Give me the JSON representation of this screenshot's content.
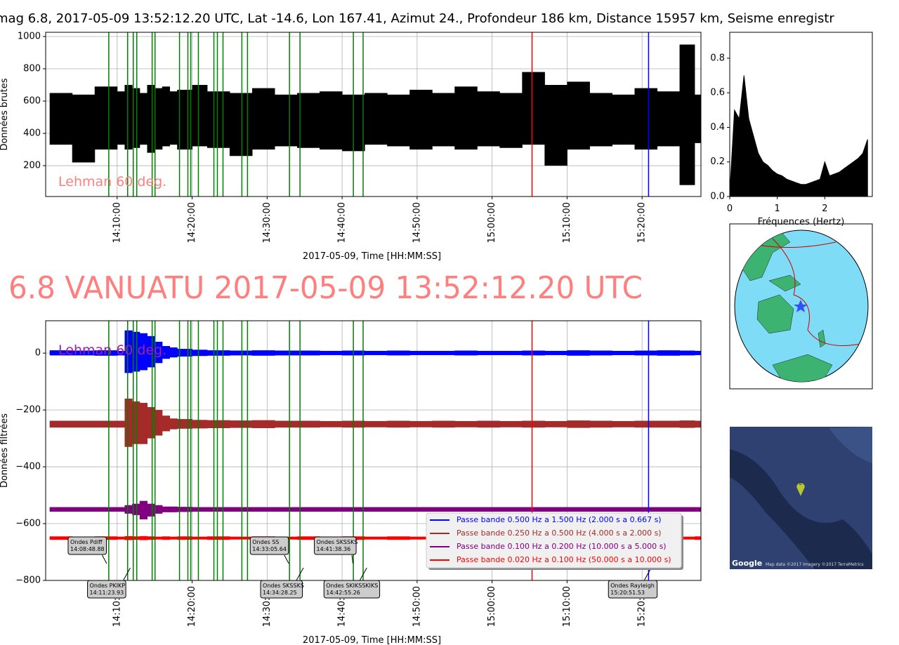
{
  "chart_data": [
    {
      "type": "band",
      "title": "mag 6.8, 2017-05-09 13:52:12.20 UTC, Lat -14.6, Lon 167.41, Azimut 24., Profondeur 186 km, Distance 15957 km, Seisme enregistr",
      "x_label": "2017-05-09, Time [HH:MM:SS]",
      "y_label": "Données brutes",
      "annotation": {
        "text": "Lehman 60 deg.",
        "color": "#ff7f7f"
      },
      "xlim": [
        "14:00:28",
        "15:27:51"
      ],
      "xticks": [
        "14:10:00",
        "14:20:00",
        "14:30:00",
        "14:40:00",
        "14:50:00",
        "15:00:00",
        "15:10:00",
        "15:20:00"
      ],
      "ylim": [
        9,
        1026
      ],
      "yticks": [
        200,
        400,
        600,
        800,
        1000
      ],
      "grid": true,
      "phase_lines": {
        "color": "#008000",
        "x": [
          "14:08:53",
          "14:11:24",
          "14:12:09",
          "14:12:37",
          "14:14:40",
          "14:15:03",
          "14:18:19",
          "14:19:26",
          "14:19:49",
          "14:20:50",
          "14:22:54",
          "14:23:22",
          "14:24:07",
          "14:26:38",
          "14:27:23",
          "14:32:59",
          "14:34:23",
          "14:41:30",
          "14:42:48"
        ]
      },
      "markers": [
        {
          "color": "#ff0000",
          "x": "15:05:20"
        },
        {
          "color": "#0000ff",
          "x": "15:20:52"
        }
      ],
      "x": [
        "14:01:00",
        "14:04:00",
        "14:07:00",
        "14:10:00",
        "14:11:00",
        "14:12:00",
        "14:13:00",
        "14:14:00",
        "14:15:00",
        "14:16:00",
        "14:17:00",
        "14:18:00",
        "14:20:00",
        "14:22:00",
        "14:25:00",
        "14:28:00",
        "14:31:00",
        "14:34:00",
        "14:37:00",
        "14:40:00",
        "14:43:00",
        "14:46:00",
        "14:49:00",
        "14:52:00",
        "14:55:00",
        "14:58:00",
        "15:01:00",
        "15:04:00",
        "15:07:00",
        "15:10:00",
        "15:13:00",
        "15:16:00",
        "15:19:00",
        "15:22:00",
        "15:25:00",
        "15:27:00"
      ],
      "series": [
        {
          "color": "#000000",
          "upper": [
            650,
            640,
            690,
            660,
            700,
            680,
            650,
            700,
            680,
            690,
            660,
            670,
            700,
            660,
            650,
            680,
            640,
            650,
            660,
            640,
            650,
            640,
            670,
            650,
            690,
            660,
            650,
            780,
            700,
            720,
            650,
            640,
            680,
            660,
            950,
            640
          ],
          "lower": [
            330,
            220,
            300,
            330,
            300,
            310,
            330,
            280,
            300,
            320,
            330,
            300,
            320,
            310,
            260,
            300,
            320,
            310,
            300,
            290,
            330,
            320,
            300,
            320,
            300,
            320,
            310,
            330,
            200,
            300,
            320,
            330,
            300,
            320,
            80,
            340
          ]
        }
      ]
    },
    {
      "type": "area",
      "x_label": "Fréquences (Hertz)",
      "xlim": [
        0,
        3.0
      ],
      "xticks": [
        0,
        1,
        2
      ],
      "ylim": [
        0,
        0.95
      ],
      "yticks": [
        {
          "value": 0,
          "label": "0.0"
        },
        0.2,
        0.4,
        0.6,
        0.8
      ],
      "x": [
        0,
        0.1,
        0.2,
        0.3,
        0.4,
        0.5,
        0.6,
        0.7,
        0.8,
        0.9,
        1.0,
        1.1,
        1.2,
        1.3,
        1.4,
        1.5,
        1.6,
        1.7,
        1.8,
        1.9,
        2.0,
        2.1,
        2.2,
        2.3,
        2.4,
        2.5,
        2.6,
        2.7,
        2.8,
        2.9
      ],
      "color": "#000000",
      "values": [
        0.02,
        0.5,
        0.45,
        0.7,
        0.45,
        0.35,
        0.25,
        0.2,
        0.18,
        0.15,
        0.13,
        0.12,
        0.1,
        0.09,
        0.08,
        0.07,
        0.07,
        0.08,
        0.09,
        0.1,
        0.2,
        0.12,
        0.13,
        0.14,
        0.16,
        0.18,
        0.2,
        0.22,
        0.25,
        0.33
      ]
    },
    {
      "type": "band",
      "title": "6.8 VANUATU 2017-05-09 13:52:12.20 UTC",
      "x_label": "2017-05-09, Time [HH:MM:SS]",
      "y_label": "Données filtrées",
      "annotation": {
        "text": "Lehman 60 deg.",
        "color": "#a020a0"
      },
      "xlim": [
        "14:00:28",
        "15:27:51"
      ],
      "xticks": [
        "14:10:00",
        "14:20:00",
        "14:30:00",
        "14:40:00",
        "14:50:00",
        "15:00:00",
        "15:10:00",
        "15:20:00"
      ],
      "ylim": [
        -800,
        114
      ],
      "yticks": [
        0,
        {
          "value": -200,
          "label": "−200"
        },
        {
          "value": -400,
          "label": "−400"
        },
        {
          "value": -600,
          "label": "−600"
        },
        {
          "value": -800,
          "label": "−800"
        }
      ],
      "grid": true,
      "phase_lines": {
        "color": "#008000",
        "x": [
          "14:08:53",
          "14:11:24",
          "14:12:09",
          "14:12:37",
          "14:14:40",
          "14:15:03",
          "14:18:19",
          "14:19:26",
          "14:19:49",
          "14:20:50",
          "14:22:54",
          "14:23:22",
          "14:24:07",
          "14:26:38",
          "14:27:23",
          "14:32:59",
          "14:34:23",
          "14:41:30",
          "14:42:48"
        ]
      },
      "markers": [
        {
          "color": "#ff0000",
          "x": "15:05:20"
        },
        {
          "color": "#0000ff",
          "x": "15:20:52"
        }
      ],
      "x": [
        "14:01:00",
        "14:04:00",
        "14:07:00",
        "14:10:00",
        "14:11:00",
        "14:12:00",
        "14:13:00",
        "14:14:00",
        "14:15:00",
        "14:16:00",
        "14:17:00",
        "14:18:00",
        "14:20:00",
        "14:22:00",
        "14:25:00",
        "14:28:00",
        "14:31:00",
        "14:34:00",
        "14:37:00",
        "14:40:00",
        "14:43:00",
        "14:46:00",
        "14:49:00",
        "14:52:00",
        "14:55:00",
        "14:58:00",
        "15:01:00",
        "15:04:00",
        "15:07:00",
        "15:10:00",
        "15:13:00",
        "15:16:00",
        "15:19:00",
        "15:22:00",
        "15:25:00",
        "15:27:00"
      ],
      "series": [
        {
          "name": "Passe bande 0.500 Hz a 1.500 Hz (2.000 s a 0.667 s)",
          "color": "#0000ff",
          "upper": [
            10,
            9,
            10,
            8,
            80,
            75,
            70,
            60,
            40,
            25,
            20,
            15,
            12,
            10,
            9,
            10,
            9,
            9,
            8,
            9,
            8,
            9,
            8,
            8,
            9,
            8,
            8,
            9,
            8,
            10,
            9,
            8,
            9,
            10,
            9,
            8
          ],
          "lower": [
            -8,
            -8,
            -9,
            -8,
            -70,
            -65,
            -60,
            -50,
            -35,
            -20,
            -15,
            -12,
            -10,
            -9,
            -8,
            -9,
            -8,
            -8,
            -7,
            -8,
            -7,
            -8,
            -7,
            -7,
            -8,
            -7,
            -7,
            -8,
            -7,
            -9,
            -8,
            -7,
            -8,
            -9,
            -8,
            -7
          ]
        },
        {
          "name": "Passe bande 0.250 Hz a 0.500 Hz (4.000 s a 2.000 s)",
          "color": "#a52a2a",
          "upper": [
            -238,
            -238,
            -238,
            -238,
            -160,
            -170,
            -175,
            -190,
            -200,
            -220,
            -230,
            -232,
            -235,
            -236,
            -237,
            -236,
            -238,
            -238,
            -239,
            -238,
            -239,
            -238,
            -239,
            -238,
            -239,
            -238,
            -239,
            -238,
            -239,
            -237,
            -238,
            -239,
            -238,
            -238,
            -237,
            -238
          ],
          "lower": [
            -262,
            -262,
            -262,
            -262,
            -330,
            -320,
            -320,
            -300,
            -290,
            -275,
            -268,
            -266,
            -265,
            -264,
            -263,
            -264,
            -262,
            -262,
            -261,
            -262,
            -261,
            -262,
            -261,
            -262,
            -261,
            -262,
            -261,
            -262,
            -261,
            -263,
            -262,
            -261,
            -262,
            -262,
            -263,
            -262
          ]
        },
        {
          "name": "Passe bande 0.100 Hz a 0.200 Hz (10.000 s a 5.000 s)",
          "color": "#800080",
          "upper": [
            -542,
            -542,
            -542,
            -542,
            -535,
            -530,
            -520,
            -530,
            -535,
            -540,
            -540,
            -541,
            -542,
            -542,
            -542,
            -542,
            -542,
            -542,
            -542,
            -542,
            -542,
            -542,
            -542,
            -542,
            -542,
            -542,
            -542,
            -542,
            -542,
            -542,
            -542,
            -542,
            -542,
            -542,
            -542,
            -542
          ],
          "lower": [
            -558,
            -558,
            -558,
            -558,
            -565,
            -570,
            -585,
            -575,
            -565,
            -560,
            -560,
            -559,
            -558,
            -558,
            -558,
            -558,
            -558,
            -558,
            -558,
            -558,
            -558,
            -558,
            -558,
            -558,
            -558,
            -558,
            -558,
            -558,
            -558,
            -558,
            -558,
            -558,
            -558,
            -558,
            -558,
            -558
          ]
        },
        {
          "name": "Passe bande 0.020 Hz a 0.100 Hz (50.000 s a 10.000 s)",
          "color": "#ff0000",
          "upper": [
            -645,
            -646,
            -645,
            -646,
            -644,
            -645,
            -644,
            -645,
            -646,
            -645,
            -646,
            -645,
            -646,
            -645,
            -646,
            -645,
            -646,
            -645,
            -646,
            -645,
            -646,
            -645,
            -646,
            -645,
            -646,
            -645,
            -646,
            -645,
            -646,
            -645,
            -646,
            -645,
            -646,
            -645,
            -646,
            -645
          ],
          "lower": [
            -657,
            -656,
            -657,
            -656,
            -658,
            -657,
            -658,
            -657,
            -656,
            -657,
            -656,
            -657,
            -656,
            -657,
            -656,
            -657,
            -656,
            -657,
            -656,
            -657,
            -656,
            -657,
            -656,
            -657,
            -656,
            -657,
            -656,
            -657,
            -656,
            -657,
            -656,
            -657,
            -656,
            -657,
            -656,
            -657
          ]
        }
      ],
      "legend": "lower right",
      "annotations_upper": [
        {
          "text": "Ondes Pdiff",
          "time": "14:08:48.88"
        },
        {
          "text": "Ondes SS",
          "time": "14:33:05.64"
        },
        {
          "text": "Ondes SKSSKS",
          "time": "14:41:38.36"
        }
      ],
      "annotations_lower": [
        {
          "text": "Ondes PKIKP",
          "time": "14:11:23.93"
        },
        {
          "text": "Ondes SKSSKS",
          "time": "14:34:28.25"
        },
        {
          "text": "Ondes SKIKSSKIKS",
          "time": "14:42:55.26"
        },
        {
          "text": "Ondes Rayleigh",
          "time": "15:20:51.53"
        }
      ]
    }
  ],
  "maps": {
    "logo": "Google",
    "marker": "E",
    "credits": "Map data ©2017 Imagery ©2017 TerraMetrics"
  }
}
